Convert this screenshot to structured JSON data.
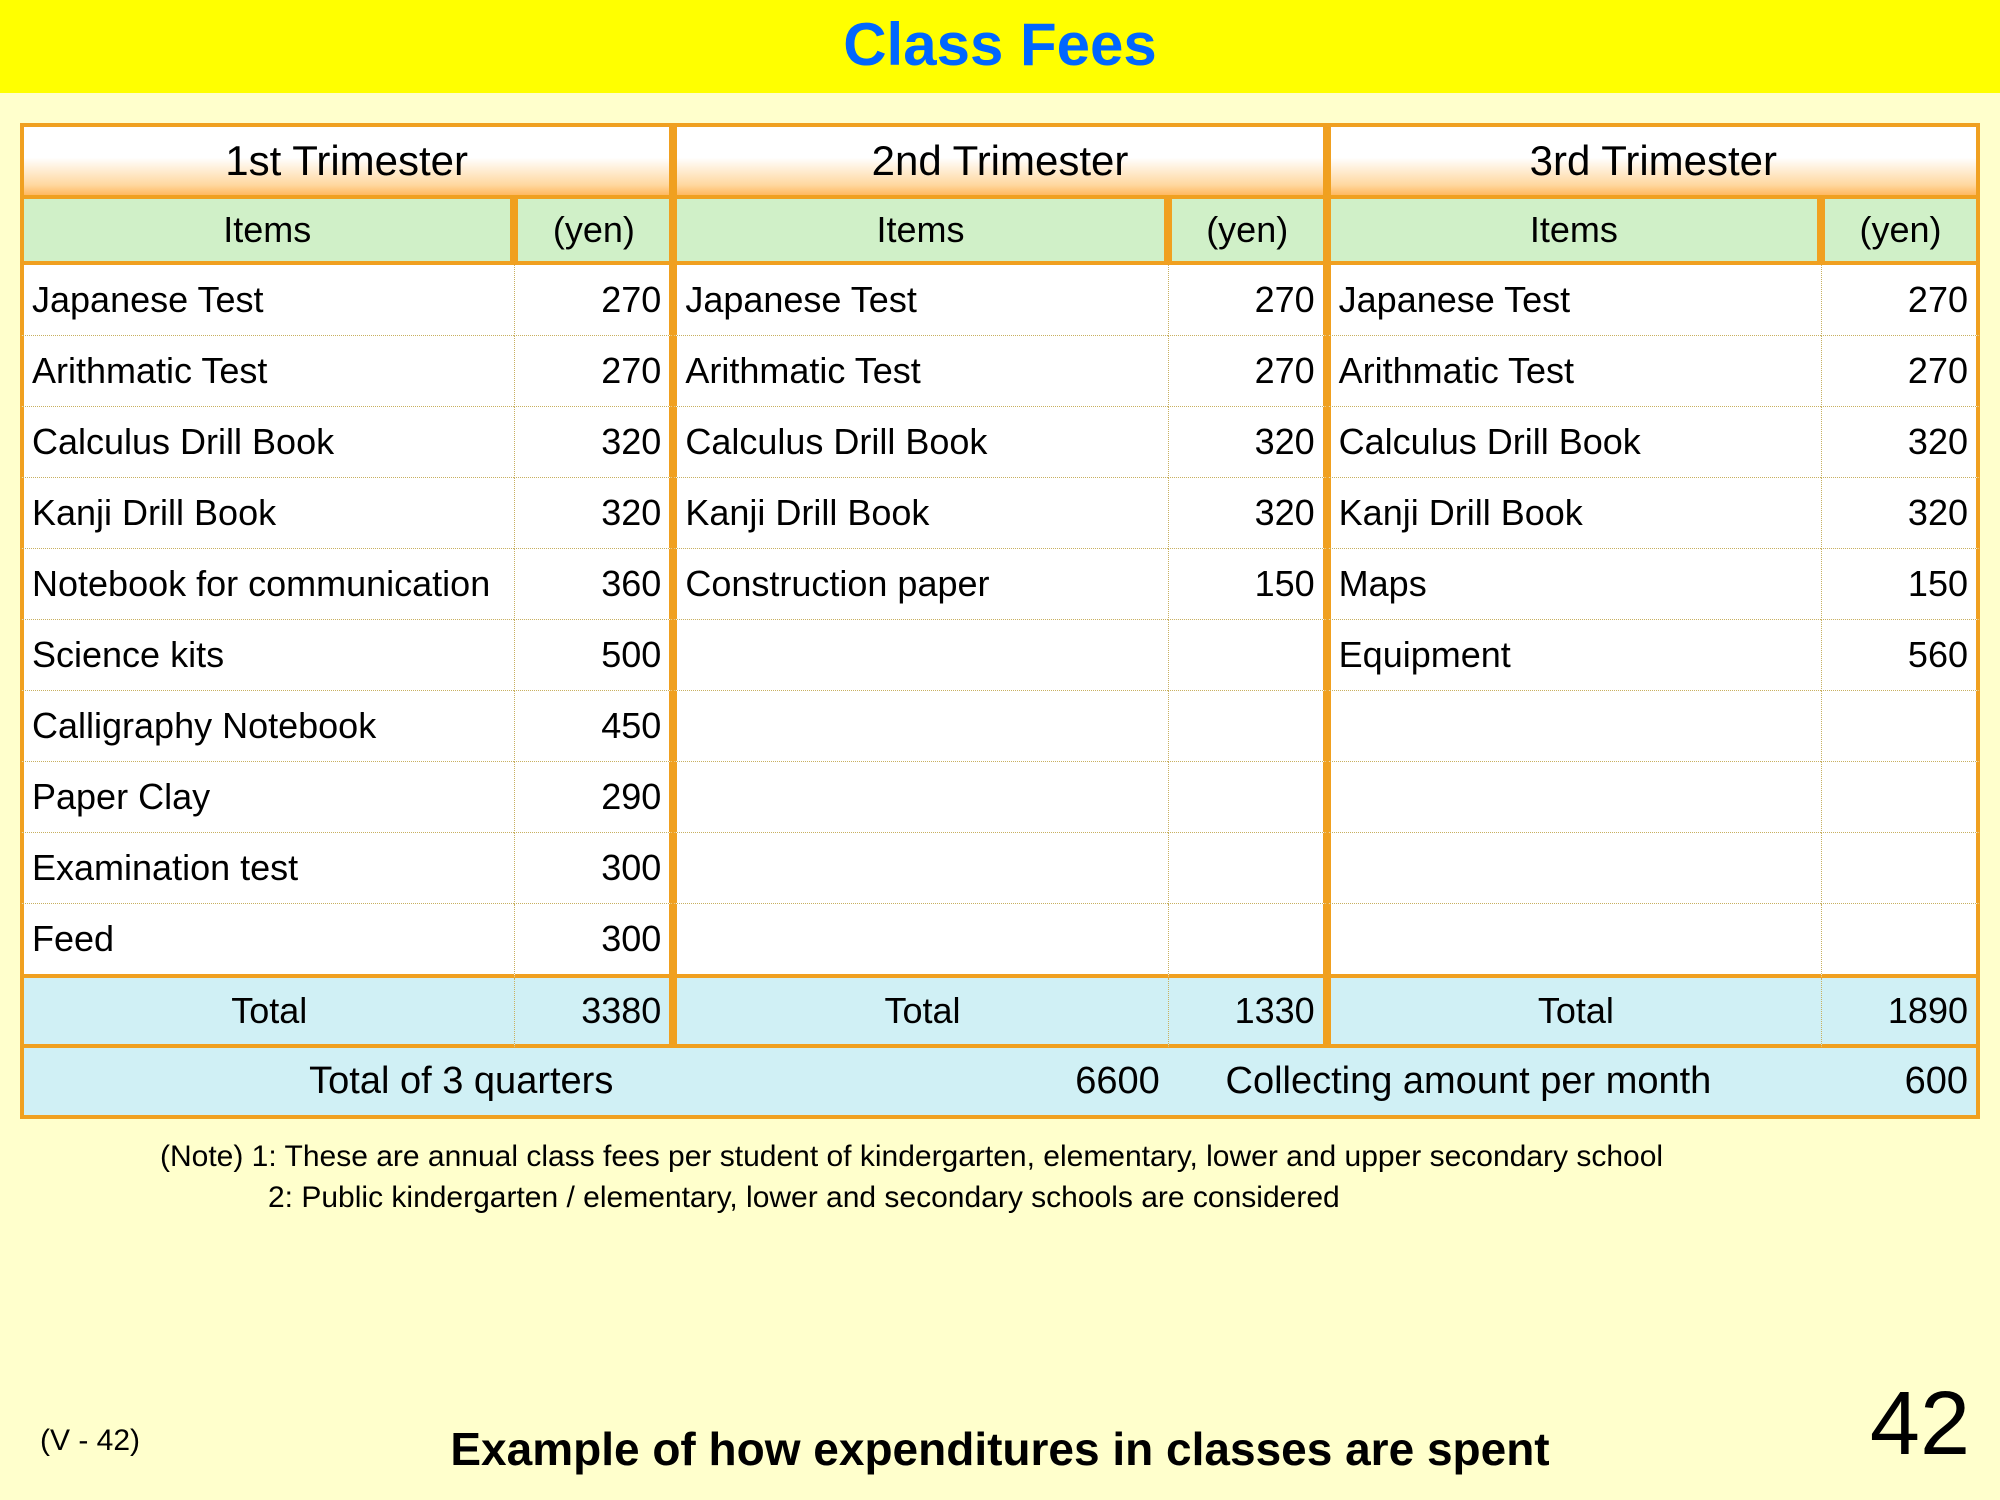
{
  "title": "Class Fees",
  "headers": {
    "trimester1": "1st Trimester",
    "trimester2": "2nd Trimester",
    "trimester3": "3rd Trimester",
    "items": "Items",
    "yen": "(yen)"
  },
  "rows": [
    {
      "t1_item": "Japanese Test",
      "t1_yen": "270",
      "t2_item": "Japanese Test",
      "t2_yen": "270",
      "t3_item": "Japanese Test",
      "t3_yen": "270"
    },
    {
      "t1_item": "Arithmatic Test",
      "t1_yen": "270",
      "t2_item": "Arithmatic Test",
      "t2_yen": "270",
      "t3_item": "Arithmatic Test",
      "t3_yen": "270"
    },
    {
      "t1_item": "Calculus Drill Book",
      "t1_yen": "320",
      "t2_item": "Calculus Drill Book",
      "t2_yen": "320",
      "t3_item": "Calculus Drill Book",
      "t3_yen": "320"
    },
    {
      "t1_item": "Kanji Drill Book",
      "t1_yen": "320",
      "t2_item": "Kanji Drill Book",
      "t2_yen": "320",
      "t3_item": "Kanji Drill Book",
      "t3_yen": "320"
    },
    {
      "t1_item": "Notebook for communication",
      "t1_yen": "360",
      "t2_item": "Construction paper",
      "t2_yen": "150",
      "t3_item": "Maps",
      "t3_yen": "150"
    },
    {
      "t1_item": "Science kits",
      "t1_yen": "500",
      "t2_item": "",
      "t2_yen": "",
      "t3_item": "Equipment",
      "t3_yen": "560"
    },
    {
      "t1_item": "Calligraphy Notebook",
      "t1_yen": "450",
      "t2_item": "",
      "t2_yen": "",
      "t3_item": "",
      "t3_yen": ""
    },
    {
      "t1_item": "Paper Clay",
      "t1_yen": "290",
      "t2_item": "",
      "t2_yen": "",
      "t3_item": "",
      "t3_yen": ""
    },
    {
      "t1_item": "Examination test",
      "t1_yen": "300",
      "t2_item": "",
      "t2_yen": "",
      "t3_item": "",
      "t3_yen": ""
    },
    {
      "t1_item": "Feed",
      "t1_yen": "300",
      "t2_item": "",
      "t2_yen": "",
      "t3_item": "",
      "t3_yen": ""
    }
  ],
  "totals": {
    "label": "Total",
    "t1": "3380",
    "t2": "1330",
    "t3": "1890"
  },
  "grand": {
    "quarters_label": "Total of 3 quarters",
    "quarters_value": "6600",
    "monthly_label": "Collecting amount per month",
    "monthly_value": "600"
  },
  "notes": {
    "line1": "(Note) 1: These are annual class fees per student of kindergarten, elementary, lower and upper secondary school",
    "line2": "2: Public kindergarten / elementary, lower and secondary schools are considered"
  },
  "footer": {
    "page_ref": "(V - 42)",
    "caption": "Example of how expenditures in classes are spent",
    "page_num": "42"
  },
  "style": {
    "page_bg": "#ffffcc",
    "title_bg": "#ffff00",
    "title_color": "#0066ff",
    "border_color": "#f0a020",
    "subhead_bg": "#d0f0c8",
    "total_bg": "#d0f0f5",
    "body_bg": "#ffffff",
    "dotted_color": "#c8b060",
    "title_fontsize": 60,
    "cell_fontsize": 36,
    "trimester_fontsize": 42,
    "caption_fontsize": 46,
    "pagenum_fontsize": 90
  }
}
